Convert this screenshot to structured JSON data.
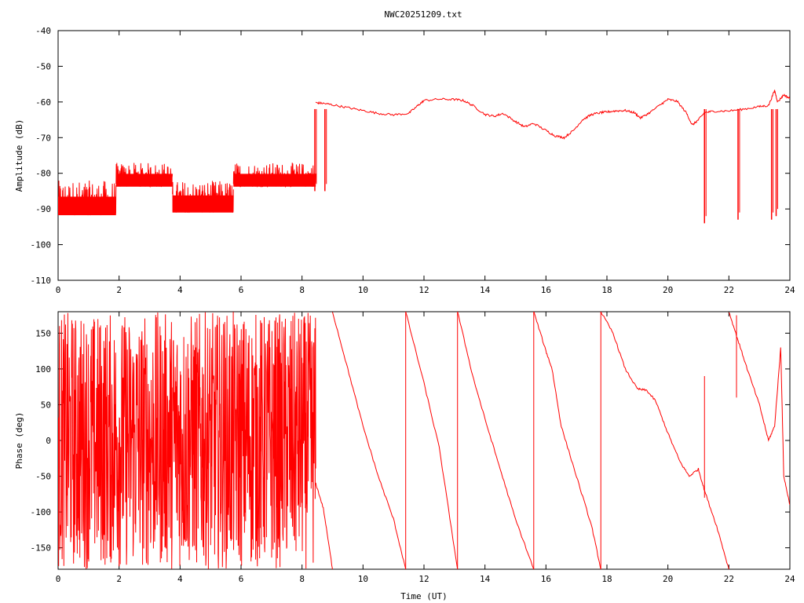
{
  "page": {
    "title": "NWC20251209.txt"
  },
  "chart_data": [
    {
      "type": "line",
      "id": "amplitude",
      "title": "NWC20251209.txt",
      "xlabel": "",
      "ylabel": "Amplitude (dB)",
      "xlim": [
        0,
        24
      ],
      "ylim": [
        -110,
        -40
      ],
      "xticks": [
        0,
        2,
        4,
        6,
        8,
        10,
        12,
        14,
        16,
        18,
        20,
        22,
        24
      ],
      "yticks": [
        -110,
        -100,
        -90,
        -80,
        -70,
        -60,
        -50,
        -40
      ],
      "color": "#ff0000",
      "grid": false,
      "legend": "none",
      "noisy_segments": [
        {
          "x": [
            0.0,
            1.9
          ],
          "low": -95,
          "high": -82
        },
        {
          "x": [
            1.9,
            3.75
          ],
          "low": -86,
          "high": -77
        },
        {
          "x": [
            3.75,
            5.75
          ],
          "low": -94,
          "high": -82
        },
        {
          "x": [
            5.75,
            8.45
          ],
          "low": -86,
          "high": -77
        }
      ],
      "trace": [
        [
          8.45,
          -60.2
        ],
        [
          8.7,
          -60.4
        ],
        [
          9.0,
          -60.8
        ],
        [
          9.5,
          -61.6
        ],
        [
          10.0,
          -62.4
        ],
        [
          10.5,
          -63.2
        ],
        [
          11.0,
          -63.6
        ],
        [
          11.5,
          -63.2
        ],
        [
          11.8,
          -61.0
        ],
        [
          12.0,
          -59.6
        ],
        [
          12.5,
          -59.2
        ],
        [
          13.0,
          -59.3
        ],
        [
          13.3,
          -59.6
        ],
        [
          13.6,
          -61.0
        ],
        [
          14.0,
          -63.5
        ],
        [
          14.3,
          -64.0
        ],
        [
          14.6,
          -63.2
        ],
        [
          15.0,
          -65.5
        ],
        [
          15.3,
          -67.0
        ],
        [
          15.6,
          -66.0
        ],
        [
          16.0,
          -68.0
        ],
        [
          16.3,
          -69.5
        ],
        [
          16.6,
          -70.0
        ],
        [
          16.9,
          -68.0
        ],
        [
          17.2,
          -65.0
        ],
        [
          17.5,
          -63.5
        ],
        [
          17.8,
          -63.0
        ],
        [
          18.0,
          -62.8
        ],
        [
          18.3,
          -62.5
        ],
        [
          18.6,
          -62.4
        ],
        [
          18.9,
          -63.0
        ],
        [
          19.1,
          -64.5
        ],
        [
          19.4,
          -63.0
        ],
        [
          19.8,
          -60.5
        ],
        [
          20.0,
          -59.3
        ],
        [
          20.3,
          -59.8
        ],
        [
          20.6,
          -63.0
        ],
        [
          20.8,
          -66.5
        ],
        [
          21.0,
          -65.0
        ],
        [
          21.2,
          -63.0
        ],
        [
          21.5,
          -62.6
        ],
        [
          22.0,
          -62.5
        ],
        [
          22.5,
          -62.0
        ],
        [
          23.0,
          -61.3
        ],
        [
          23.3,
          -61.0
        ],
        [
          23.5,
          -56.8
        ],
        [
          23.6,
          -60.0
        ],
        [
          23.8,
          -58.0
        ],
        [
          24.0,
          -59.0
        ]
      ],
      "dips": [
        {
          "x": 8.42,
          "y": -85
        },
        {
          "x": 8.75,
          "y": -85
        },
        {
          "x": 21.2,
          "y": -94
        },
        {
          "x": 22.3,
          "y": -93
        },
        {
          "x": 23.4,
          "y": -93
        },
        {
          "x": 23.55,
          "y": -92
        }
      ]
    },
    {
      "type": "line",
      "id": "phase",
      "title": "",
      "xlabel": "Time (UT)",
      "ylabel": "Phase (deg)",
      "xlim": [
        0,
        24
      ],
      "ylim": [
        -180,
        180
      ],
      "xticks": [
        0,
        2,
        4,
        6,
        8,
        10,
        12,
        14,
        16,
        18,
        20,
        22,
        24
      ],
      "yticks": [
        -150,
        -100,
        -50,
        0,
        50,
        100,
        150
      ],
      "color": "#ff0000",
      "grid": false,
      "legend": "none",
      "noisy_segment": {
        "x": [
          0.0,
          8.45
        ],
        "low": -180,
        "high": 180
      },
      "trace": [
        [
          8.45,
          -60
        ],
        [
          8.7,
          -95
        ],
        [
          9.0,
          -180
        ],
        [
          9.0,
          180
        ],
        [
          9.5,
          100
        ],
        [
          10.0,
          20
        ],
        [
          10.5,
          -50
        ],
        [
          11.0,
          -110
        ],
        [
          11.4,
          -180
        ],
        [
          11.4,
          180
        ],
        [
          12.0,
          80
        ],
        [
          12.5,
          -10
        ],
        [
          13.1,
          -180
        ],
        [
          13.1,
          180
        ],
        [
          13.6,
          90
        ],
        [
          14.0,
          30
        ],
        [
          14.5,
          -40
        ],
        [
          15.0,
          -110
        ],
        [
          15.6,
          -180
        ],
        [
          15.6,
          180
        ],
        [
          16.0,
          125
        ],
        [
          16.2,
          100
        ],
        [
          16.5,
          20
        ],
        [
          17.0,
          -50
        ],
        [
          17.5,
          -120
        ],
        [
          17.8,
          -180
        ],
        [
          17.8,
          180
        ],
        [
          18.2,
          150
        ],
        [
          18.6,
          100
        ],
        [
          19.0,
          72
        ],
        [
          19.3,
          70
        ],
        [
          19.6,
          55
        ],
        [
          20.0,
          10
        ],
        [
          20.4,
          -30
        ],
        [
          20.7,
          -50
        ],
        [
          21.0,
          -40
        ],
        [
          21.2,
          -70
        ],
        [
          21.6,
          -120
        ],
        [
          22.0,
          -180
        ],
        [
          22.0,
          180
        ],
        [
          22.3,
          140
        ],
        [
          22.6,
          100
        ],
        [
          23.0,
          50
        ],
        [
          23.3,
          0
        ],
        [
          23.5,
          20
        ],
        [
          23.7,
          130
        ],
        [
          23.8,
          -50
        ],
        [
          24.0,
          -90
        ]
      ],
      "spikes": [
        {
          "x": 11.4,
          "y1": -180,
          "y2": 180
        },
        {
          "x": 13.1,
          "y1": -180,
          "y2": 180
        },
        {
          "x": 15.6,
          "y1": -180,
          "y2": 180
        },
        {
          "x": 17.8,
          "y1": -180,
          "y2": 180
        },
        {
          "x": 21.2,
          "y1": -80,
          "y2": 90
        },
        {
          "x": 22.25,
          "y1": 60,
          "y2": 175
        }
      ]
    }
  ]
}
